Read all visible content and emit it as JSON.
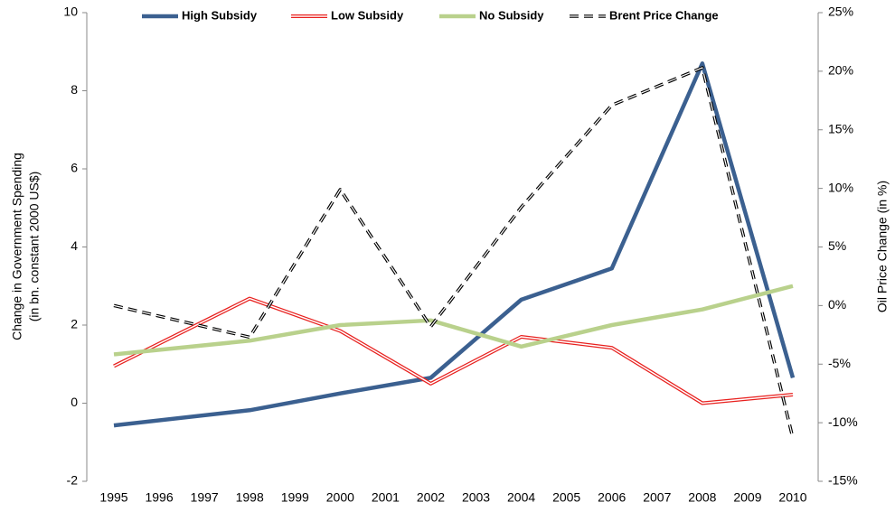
{
  "chart_data": {
    "type": "line",
    "x": [
      1995,
      1998,
      2000,
      2002,
      2004,
      2006,
      2008,
      2010
    ],
    "xlim": [
      1995,
      2010
    ],
    "xticks": [
      1995,
      1996,
      1997,
      1998,
      1999,
      2000,
      2001,
      2002,
      2003,
      2004,
      2005,
      2006,
      2007,
      2008,
      2009,
      2010
    ],
    "ylabel": [
      "Change in Government Spending",
      "(in bn. constant 2000 US$)"
    ],
    "ylim": [
      -2,
      10
    ],
    "yticks": [
      -2,
      0,
      2,
      4,
      6,
      8,
      10
    ],
    "y2label": "Oil Price Change (in %)",
    "y2lim": [
      -15,
      25
    ],
    "y2ticks": [
      {
        "value": -15,
        "label": "-15%"
      },
      {
        "value": -10,
        "label": "-10%"
      },
      {
        "value": -5,
        "label": "-5%"
      },
      {
        "value": 0,
        "label": "0%"
      },
      {
        "value": 5,
        "label": "5%"
      },
      {
        "value": 10,
        "label": "10%"
      },
      {
        "value": 15,
        "label": "15%"
      },
      {
        "value": 20,
        "label": "20%"
      },
      {
        "value": 25,
        "label": "25%"
      }
    ],
    "grid": false,
    "legend": "top",
    "series": [
      {
        "name": "High Subsidy",
        "color": "#3b6090",
        "style": "solid",
        "values": [
          -0.57,
          -0.18,
          0.25,
          0.65,
          2.65,
          3.45,
          8.7,
          0.65
        ]
      },
      {
        "name": "Low Subsidy",
        "color": "#e8201e",
        "style": "double",
        "values": [
          0.95,
          2.68,
          1.85,
          0.5,
          1.7,
          1.42,
          0.0,
          0.22
        ]
      },
      {
        "name": "No Subsidy",
        "color": "#b9d18c",
        "style": "solid",
        "values": [
          1.25,
          1.6,
          2.0,
          2.12,
          1.45,
          2.0,
          2.4,
          3.0
        ]
      },
      {
        "name": "Brent Price Change",
        "color": "#000000",
        "style": "dashed",
        "axis": "y2",
        "values": [
          0,
          -2.7,
          9.9,
          -1.8,
          8.4,
          17.1,
          20.3,
          -11.3
        ]
      }
    ]
  }
}
